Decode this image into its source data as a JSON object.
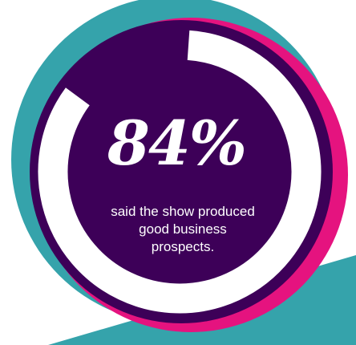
{
  "chart_data": {
    "type": "pie",
    "values": [
      84,
      16
    ],
    "value_label": "84%",
    "caption": "said the show produced good business prospects.",
    "caption_lines": [
      "said the show produced",
      "good business",
      "prospects."
    ]
  },
  "colors": {
    "background": "#ffffff",
    "teal": "#35a3ab",
    "magenta": "#e5137f",
    "purple": "#3d0058",
    "ring": "#ffffff",
    "text": "#ffffff"
  }
}
